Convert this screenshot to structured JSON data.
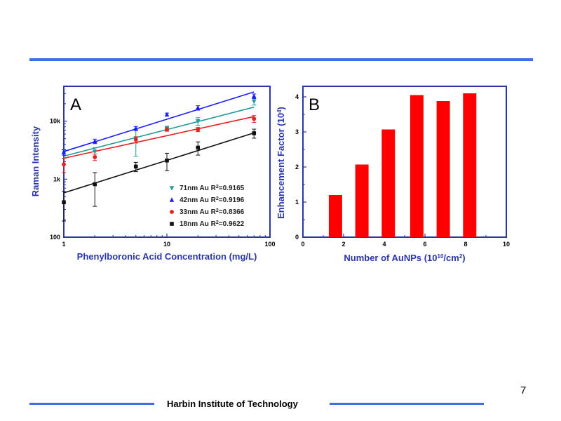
{
  "footer": {
    "institution": "Harbin Institute of Technology",
    "page_number": "7"
  },
  "colors": {
    "rule": "#3f6fe6",
    "axis": "#2a36a8",
    "bar": "#ff0000"
  },
  "chart_data": [
    {
      "type": "scatter",
      "panel_label": "A",
      "xlabel": "Phenylboronic Acid Concentration (mg/L)",
      "ylabel": "Raman Intensity",
      "xscale": "log",
      "yscale": "log",
      "xlim": [
        1,
        100
      ],
      "ylim": [
        100,
        40000
      ],
      "x_ticks": [
        {
          "v": 1,
          "label": "1"
        },
        {
          "v": 10,
          "label": "10"
        },
        {
          "v": 100,
          "label": "100"
        }
      ],
      "y_ticks": [
        {
          "v": 100,
          "label": "100"
        },
        {
          "v": 1000,
          "label": "1k"
        },
        {
          "v": 10000,
          "label": "10k"
        }
      ],
      "legend_position": "bottom-right",
      "series": [
        {
          "name": "71nm Au R",
          "r2": "0.9165",
          "marker": "triangle-down",
          "color": "#1f9a9a",
          "x": [
            1,
            2,
            5,
            10,
            20,
            70
          ],
          "y": [
            2800,
            3000,
            5000,
            7500,
            10000,
            22000
          ],
          "err": [
            500,
            500,
            2500,
            700,
            1500,
            3000
          ],
          "fit": [
            2500,
            17500
          ]
        },
        {
          "name": "42nm Au R",
          "r2": "0.9196",
          "marker": "triangle-up",
          "color": "#1a1aff",
          "x": [
            1,
            2,
            5,
            10,
            20,
            70
          ],
          "y": [
            2900,
            4500,
            7500,
            13000,
            17000,
            27000
          ],
          "err": [
            300,
            400,
            600,
            800,
            1500,
            2500
          ],
          "fit": [
            3000,
            32000
          ]
        },
        {
          "name": "33nm Au R",
          "r2": "0.8366",
          "marker": "circle",
          "color": "#e62020",
          "x": [
            1,
            2,
            5,
            10,
            20,
            70
          ],
          "y": [
            1800,
            2400,
            4800,
            7200,
            7200,
            11000
          ],
          "err": [
            500,
            300,
            600,
            500,
            600,
            1500
          ],
          "fit": [
            2300,
            12000
          ]
        },
        {
          "name": "18nm Au R",
          "r2": "0.9622",
          "marker": "square",
          "color": "#111111",
          "x": [
            1,
            2,
            5,
            10,
            20,
            70
          ],
          "y": [
            400,
            820,
            1650,
            2100,
            3500,
            6200
          ],
          "err": [
            210,
            480,
            300,
            700,
            900,
            1100
          ],
          "fit": [
            580,
            6300
          ]
        }
      ]
    },
    {
      "type": "bar",
      "panel_label": "B",
      "xlabel": "Number of AuNPs (10^10/cm^2)",
      "ylabel": "Enhancement Factor (10^4)",
      "xlim": [
        0,
        10
      ],
      "ylim": [
        0,
        4.3
      ],
      "x_ticks": [
        0,
        2,
        4,
        6,
        8,
        10
      ],
      "y_ticks": [
        0,
        1,
        2,
        3,
        4
      ],
      "x": [
        1.6,
        2.9,
        4.2,
        5.6,
        6.9,
        8.2
      ],
      "values": [
        1.2,
        2.07,
        3.07,
        4.05,
        3.88,
        4.1
      ]
    }
  ]
}
